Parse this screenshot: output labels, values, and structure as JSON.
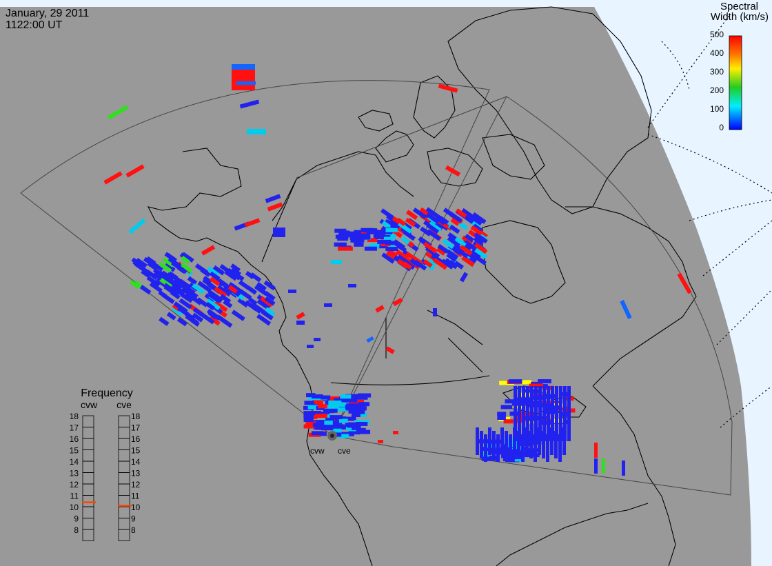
{
  "header": {
    "date": "January, 29 2011",
    "time": "1122:00 UT"
  },
  "colorbar": {
    "title_line1": "Spectral",
    "title_line2": "Width (km/s)",
    "ticks": [
      "500",
      "400",
      "300",
      "200",
      "100",
      "0"
    ],
    "stops": [
      "#ff0000",
      "#ffa500",
      "#ffff00",
      "#22cc22",
      "#00ffff",
      "#0000ff"
    ]
  },
  "frequency_panel": {
    "title": "Frequency",
    "radars": [
      {
        "code": "cvw",
        "value_mhz": 10.9
      },
      {
        "code": "cve",
        "value_mhz": 10.6
      }
    ],
    "scale": [
      "18",
      "17",
      "16",
      "15",
      "14",
      "13",
      "12",
      "11",
      "10",
      "9",
      "8"
    ],
    "marker_color": "#ff4400"
  },
  "stations": [
    {
      "code": "cvw"
    },
    {
      "code": "cve"
    }
  ],
  "colors": {
    "background": "#999999",
    "space": "#e8f4ff",
    "low_width": "#2222ff",
    "mid_width": "#00ccff",
    "high_width": "#ff0000"
  }
}
